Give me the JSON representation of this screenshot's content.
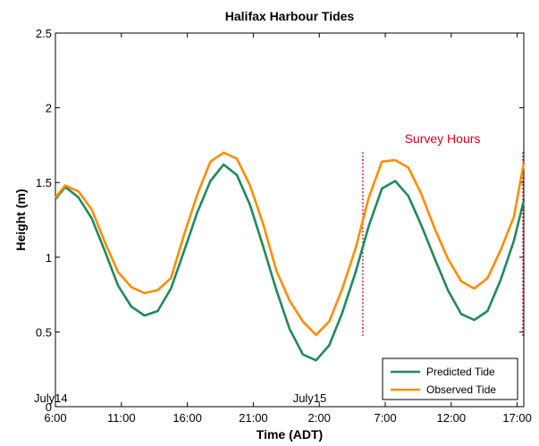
{
  "chart_data": {
    "type": "line",
    "title": "Halifax Harbour Tides",
    "xlabel": "Time (ADT)",
    "ylabel": "Height (m)",
    "x_tick_labels": [
      "6:00",
      "11:00",
      "16:00",
      "21:00",
      "2:00",
      "7:00",
      "12:00",
      "17:00"
    ],
    "x_tick_hours": [
      0,
      5,
      10,
      15,
      20,
      25,
      30,
      35
    ],
    "xlim": [
      0,
      35.5
    ],
    "y_ticks": [
      "0",
      "0.5",
      "1",
      "1.5",
      "2",
      "2.5"
    ],
    "ylim": [
      0,
      2.5
    ],
    "grid": false,
    "legend_position": "bottom-right",
    "date_labels": [
      {
        "text": "July14",
        "hour": 0
      },
      {
        "text": "July15",
        "hour": 18
      }
    ],
    "survey_annotation": {
      "text": "Survey Hours",
      "color": "#d0021b",
      "start_hour": 23.3,
      "end_hour": 35.5
    },
    "series": [
      {
        "name": "Predicted Tide",
        "color": "#1f8a5c",
        "x": [
          0,
          0.75,
          1.75,
          2.75,
          3.75,
          4.75,
          5.75,
          6.75,
          7.75,
          8.75,
          9.75,
          10.75,
          11.75,
          12.75,
          13.75,
          14.75,
          15.75,
          16.75,
          17.75,
          18.75,
          19.75,
          20.75,
          21.75,
          22.75,
          23.75,
          24.75,
          25.75,
          26.75,
          27.75,
          28.75,
          29.75,
          30.75,
          31.75,
          32.75,
          33.75,
          34.75,
          35.5
        ],
        "y": [
          1.39,
          1.47,
          1.4,
          1.26,
          1.04,
          0.81,
          0.67,
          0.61,
          0.64,
          0.79,
          1.04,
          1.3,
          1.51,
          1.62,
          1.55,
          1.35,
          1.07,
          0.78,
          0.52,
          0.35,
          0.31,
          0.41,
          0.63,
          0.9,
          1.21,
          1.46,
          1.51,
          1.41,
          1.21,
          0.99,
          0.78,
          0.62,
          0.58,
          0.64,
          0.85,
          1.11,
          1.38
        ]
      },
      {
        "name": "Observed Tide",
        "color": "#ff8c00",
        "x": [
          0,
          0.75,
          1.75,
          2.75,
          3.75,
          4.75,
          5.75,
          6.75,
          7.75,
          8.75,
          9.75,
          10.75,
          11.75,
          12.75,
          13.75,
          14.75,
          15.75,
          16.75,
          17.75,
          18.75,
          19.75,
          20.75,
          21.75,
          22.75,
          23.75,
          24.75,
          25.75,
          26.75,
          27.75,
          28.75,
          29.75,
          30.75,
          31.75,
          32.75,
          33.75,
          34.75,
          35.5
        ],
        "y": [
          1.4,
          1.48,
          1.44,
          1.32,
          1.1,
          0.9,
          0.8,
          0.76,
          0.78,
          0.86,
          1.15,
          1.42,
          1.64,
          1.7,
          1.66,
          1.48,
          1.22,
          0.91,
          0.71,
          0.57,
          0.48,
          0.57,
          0.79,
          1.06,
          1.4,
          1.64,
          1.65,
          1.6,
          1.42,
          1.19,
          0.99,
          0.84,
          0.79,
          0.86,
          1.05,
          1.27,
          1.63
        ]
      }
    ]
  }
}
